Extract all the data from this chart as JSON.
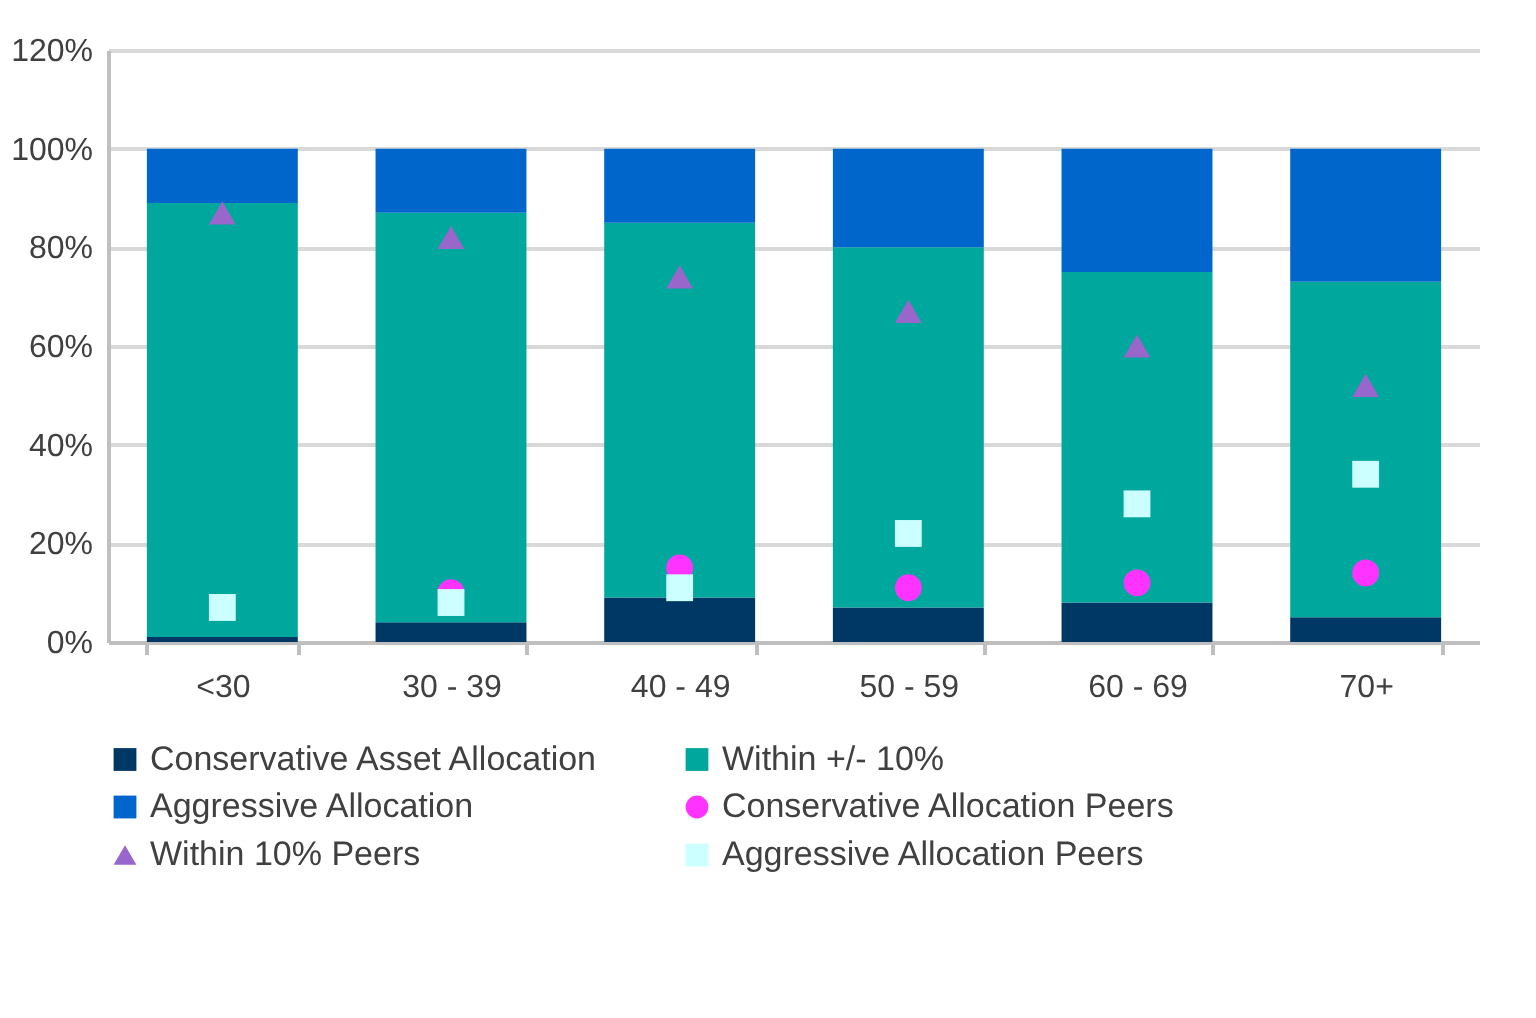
{
  "chart_data": {
    "type": "bar",
    "stacked": true,
    "categories": [
      "<30",
      "30 - 39",
      "40 - 49",
      "50 - 59",
      "60 - 69",
      "70+"
    ],
    "ylim": [
      0,
      120
    ],
    "yticks": [
      {
        "value": 0,
        "label": "0%"
      },
      {
        "value": 20,
        "label": "20%"
      },
      {
        "value": 40,
        "label": "40%"
      },
      {
        "value": 60,
        "label": "60%"
      },
      {
        "value": 80,
        "label": "80%"
      },
      {
        "value": 100,
        "label": "100%"
      },
      {
        "value": 120,
        "label": "120%"
      }
    ],
    "grid": "y",
    "legend": "bottom",
    "series": [
      {
        "name": "Conservative Asset Allocation",
        "color": "#003865",
        "values": [
          1,
          4,
          9,
          7,
          8,
          5
        ]
      },
      {
        "name": "Within +/- 10%",
        "color": "#00a79d",
        "values": [
          88,
          83,
          76,
          73,
          67,
          68
        ]
      },
      {
        "name": "Aggressive Allocation",
        "color": "#0066cc",
        "values": [
          11,
          13,
          15,
          20,
          25,
          27
        ]
      },
      {
        "name": "Conservative Allocation Peers",
        "type": "scatter",
        "marker": "circle",
        "color": "#ff33ff",
        "values": [
          null,
          10,
          15,
          11,
          12,
          14
        ]
      },
      {
        "name": "Within 10% Peers",
        "type": "scatter",
        "marker": "triangle",
        "color": "#9966cc",
        "values": [
          87,
          82,
          74,
          67,
          60,
          52
        ]
      },
      {
        "name": "Aggressive Allocation Peers",
        "type": "scatter",
        "marker": "square",
        "color": "#ccffff",
        "values": [
          7,
          8,
          11,
          22,
          28,
          34
        ]
      }
    ]
  }
}
